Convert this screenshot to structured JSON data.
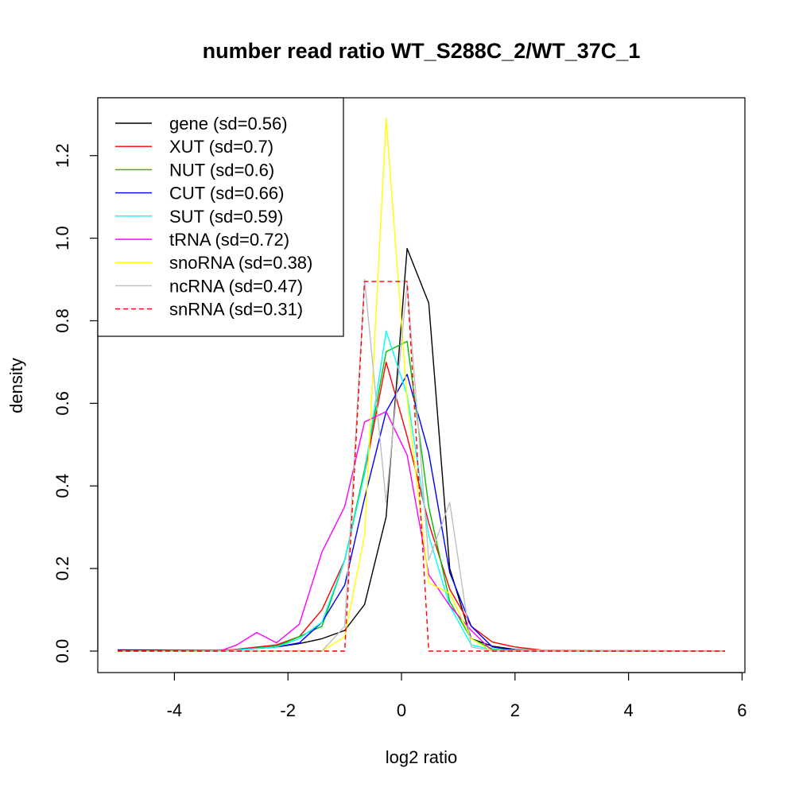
{
  "chart_data": {
    "type": "line",
    "title": "number read ratio WT_S288C_2/WT_37C_1",
    "xlabel": "log2 ratio",
    "ylabel": "density",
    "xlim": [
      -5.35,
      6.05
    ],
    "ylim": [
      -0.052,
      1.34
    ],
    "x_ticks": [
      {
        "value": -4,
        "label": "-4"
      },
      {
        "value": -2,
        "label": "-2"
      },
      {
        "value": 0,
        "label": "0"
      },
      {
        "value": 2,
        "label": "2"
      },
      {
        "value": 4,
        "label": "4"
      },
      {
        "value": 6,
        "label": "6"
      }
    ],
    "y_ticks": [
      {
        "value": 0.0,
        "label": "0.0"
      },
      {
        "value": 0.2,
        "label": "0.2"
      },
      {
        "value": 0.4,
        "label": "0.4"
      },
      {
        "value": 0.6,
        "label": "0.6"
      },
      {
        "value": 0.8,
        "label": "0.8"
      },
      {
        "value": 1.0,
        "label": "1.0"
      },
      {
        "value": 1.2,
        "label": "1.2"
      }
    ],
    "grid": false,
    "legend_position": "top-left",
    "series": [
      {
        "name": "gene (sd=0.56)",
        "color": "#000000",
        "dash": false,
        "points": [
          [
            -5.0,
            0.0
          ],
          [
            -3.0,
            0.003
          ],
          [
            -2.2,
            0.01
          ],
          [
            -1.8,
            0.018
          ],
          [
            -1.4,
            0.03
          ],
          [
            -1.0,
            0.05
          ],
          [
            -0.65,
            0.113
          ],
          [
            -0.27,
            0.325
          ],
          [
            0.1,
            0.975
          ],
          [
            0.48,
            0.843
          ],
          [
            0.85,
            0.2
          ],
          [
            1.23,
            0.03
          ],
          [
            1.6,
            0.012
          ],
          [
            2.0,
            0.004
          ],
          [
            2.6,
            0.001
          ],
          [
            3.5,
            0.0
          ],
          [
            5.7,
            0.0
          ]
        ]
      },
      {
        "name": "XUT (sd=0.7)",
        "color": "#ff0000",
        "dash": false,
        "points": [
          [
            -5.0,
            0.0
          ],
          [
            -3.0,
            0.003
          ],
          [
            -2.2,
            0.015
          ],
          [
            -1.8,
            0.035
          ],
          [
            -1.4,
            0.1
          ],
          [
            -1.0,
            0.22
          ],
          [
            -0.65,
            0.43
          ],
          [
            -0.27,
            0.7
          ],
          [
            0.1,
            0.52
          ],
          [
            0.48,
            0.31
          ],
          [
            0.85,
            0.15
          ],
          [
            1.23,
            0.06
          ],
          [
            1.6,
            0.022
          ],
          [
            2.0,
            0.01
          ],
          [
            2.5,
            0.002
          ],
          [
            5.7,
            0.0
          ]
        ]
      },
      {
        "name": "NUT (sd=0.6)",
        "color": "#00c000",
        "dash": false,
        "points": [
          [
            -5.0,
            0.0
          ],
          [
            -3.0,
            0.002
          ],
          [
            -2.2,
            0.012
          ],
          [
            -1.8,
            0.035
          ],
          [
            -1.4,
            0.06
          ],
          [
            -1.0,
            0.22
          ],
          [
            -0.65,
            0.44
          ],
          [
            -0.27,
            0.725
          ],
          [
            0.1,
            0.75
          ],
          [
            0.48,
            0.35
          ],
          [
            0.85,
            0.12
          ],
          [
            1.23,
            0.03
          ],
          [
            1.6,
            0.005
          ],
          [
            2.0,
            0.001
          ],
          [
            5.7,
            0.0
          ]
        ]
      },
      {
        "name": "CUT (sd=0.66)",
        "color": "#0000ff",
        "dash": false,
        "points": [
          [
            -5.0,
            0.003
          ],
          [
            -3.0,
            0.002
          ],
          [
            -2.2,
            0.01
          ],
          [
            -1.8,
            0.02
          ],
          [
            -1.4,
            0.07
          ],
          [
            -1.0,
            0.16
          ],
          [
            -0.65,
            0.37
          ],
          [
            -0.27,
            0.58
          ],
          [
            0.1,
            0.67
          ],
          [
            0.48,
            0.48
          ],
          [
            0.85,
            0.19
          ],
          [
            1.23,
            0.06
          ],
          [
            1.6,
            0.01
          ],
          [
            2.0,
            0.002
          ],
          [
            5.7,
            0.0
          ]
        ]
      },
      {
        "name": "SUT (sd=0.59)",
        "color": "#00ffff",
        "dash": false,
        "points": [
          [
            -5.0,
            0.0
          ],
          [
            -3.0,
            0.002
          ],
          [
            -2.2,
            0.01
          ],
          [
            -1.8,
            0.03
          ],
          [
            -1.4,
            0.07
          ],
          [
            -1.0,
            0.22
          ],
          [
            -0.65,
            0.43
          ],
          [
            -0.27,
            0.775
          ],
          [
            0.1,
            0.62
          ],
          [
            0.48,
            0.28
          ],
          [
            0.85,
            0.11
          ],
          [
            1.23,
            0.015
          ],
          [
            1.6,
            0.003
          ],
          [
            5.7,
            0.0
          ]
        ]
      },
      {
        "name": "tRNA (sd=0.72)",
        "color": "#ff00ff",
        "dash": false,
        "points": [
          [
            -5.0,
            0.0
          ],
          [
            -3.2,
            0.0
          ],
          [
            -2.9,
            0.015
          ],
          [
            -2.55,
            0.045
          ],
          [
            -2.2,
            0.02
          ],
          [
            -1.8,
            0.065
          ],
          [
            -1.4,
            0.24
          ],
          [
            -1.0,
            0.35
          ],
          [
            -0.65,
            0.555
          ],
          [
            -0.27,
            0.58
          ],
          [
            0.1,
            0.475
          ],
          [
            0.48,
            0.185
          ],
          [
            0.85,
            0.11
          ],
          [
            1.23,
            0.05
          ],
          [
            1.6,
            0.0
          ],
          [
            5.7,
            0.0
          ]
        ]
      },
      {
        "name": "snoRNA (sd=0.38)",
        "color": "#ffff00",
        "dash": false,
        "points": [
          [
            -5.0,
            0.0
          ],
          [
            -1.4,
            0.0
          ],
          [
            -1.0,
            0.035
          ],
          [
            -0.65,
            0.28
          ],
          [
            -0.27,
            1.29
          ],
          [
            0.1,
            0.61
          ],
          [
            0.48,
            0.165
          ],
          [
            0.85,
            0.14
          ],
          [
            1.23,
            0.03
          ],
          [
            1.6,
            0.0
          ],
          [
            5.7,
            0.0
          ]
        ]
      },
      {
        "name": "ncRNA (sd=0.47)",
        "color": "#bebebe",
        "dash": false,
        "points": [
          [
            -5.0,
            0.0
          ],
          [
            -1.4,
            0.0
          ],
          [
            -1.0,
            0.06
          ],
          [
            -0.65,
            0.9
          ],
          [
            -0.27,
            0.36
          ],
          [
            0.1,
            0.89
          ],
          [
            0.48,
            0.22
          ],
          [
            0.85,
            0.36
          ],
          [
            1.23,
            0.01
          ],
          [
            1.6,
            0.0
          ],
          [
            5.7,
            0.0
          ]
        ]
      },
      {
        "name": "snRNA (sd=0.31)",
        "color": "#ff0000",
        "dash": true,
        "points": [
          [
            -5.0,
            0.0
          ],
          [
            -1.0,
            0.0
          ],
          [
            -0.65,
            0.895
          ],
          [
            0.1,
            0.895
          ],
          [
            0.48,
            0.0
          ],
          [
            5.7,
            0.0
          ]
        ]
      }
    ]
  }
}
